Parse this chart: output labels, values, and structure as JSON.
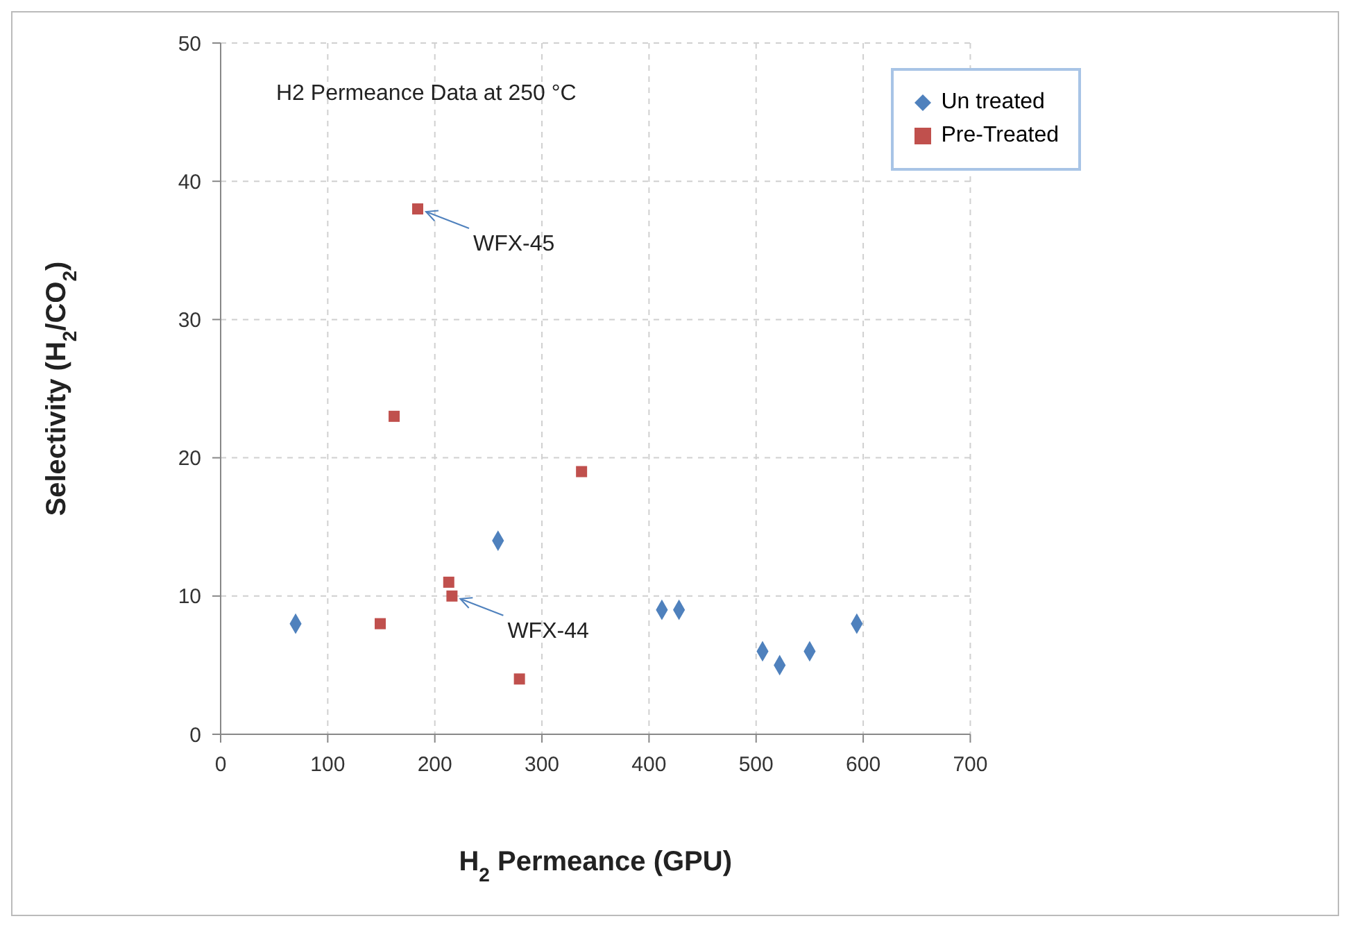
{
  "chart_data": {
    "type": "scatter",
    "xlabel": "H$_{2}$ Permeance (GPU)",
    "ylabel": "Selectivity (H$_{2}$/CO$_{2}$)",
    "xlim": [
      0,
      700
    ],
    "xticks": [
      0,
      100,
      200,
      300,
      400,
      500,
      600,
      700
    ],
    "ylim": [
      0,
      50
    ],
    "yticks": [
      0,
      10,
      20,
      30,
      40,
      50
    ],
    "grid": true,
    "legend": "top right",
    "series": [
      {
        "name": "Un treated",
        "color": "#4f81bd",
        "marker": "diamond",
        "x": [
          70,
          259,
          412,
          428,
          506,
          522,
          550,
          594
        ],
        "values": [
          8,
          14,
          9,
          9,
          6,
          5,
          6,
          8
        ]
      },
      {
        "name": "Pre-Treated",
        "color": "#c0504d",
        "marker": "square",
        "x": [
          184,
          162,
          337,
          213,
          216,
          149,
          279
        ],
        "values": [
          38,
          23,
          19,
          11,
          10,
          8,
          4
        ]
      }
    ],
    "annotations": [
      "H2 Permeance Data at 250 °C",
      {
        "text": "WFX-45",
        "x": 184,
        "y": 38
      },
      {
        "text": "WFX-44",
        "x": 216,
        "y": 10
      }
    ]
  }
}
